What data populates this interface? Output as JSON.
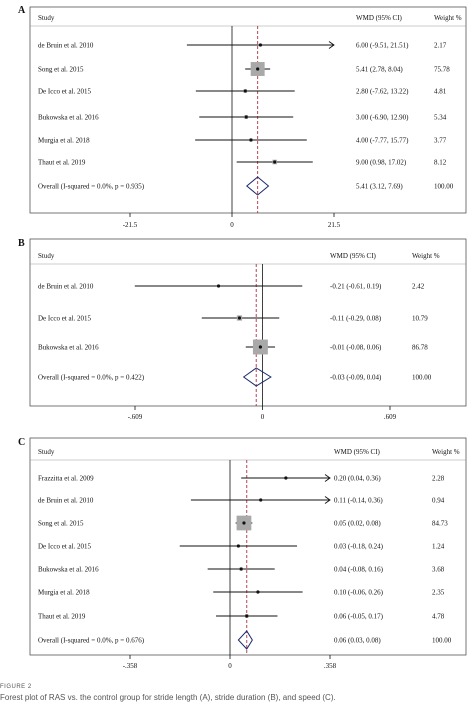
{
  "chart_data": [
    {
      "type": "forest",
      "panel_label": "A",
      "header": {
        "study": "Study",
        "effect": "WMD (95% CI)",
        "weight": "Weight %"
      },
      "rows": [
        {
          "study": "de Bruin et al. 2010",
          "estimate": 6.0,
          "lower": -9.51,
          "upper": 21.51,
          "ci_text": "6.00 (-9.51, 21.51)",
          "weight": 2.17,
          "weight_text": "2.17"
        },
        {
          "study": "Song et al. 2015",
          "estimate": 5.41,
          "lower": 2.78,
          "upper": 8.04,
          "ci_text": "5.41 (2.78, 8.04)",
          "weight": 75.78,
          "weight_text": "75.78"
        },
        {
          "study": "De Icco et al. 2015",
          "estimate": 2.8,
          "lower": -7.62,
          "upper": 13.22,
          "ci_text": "2.80 (-7.62, 13.22)",
          "weight": 4.81,
          "weight_text": "4.81"
        },
        {
          "study": "Bukowska et al. 2016",
          "estimate": 3.0,
          "lower": -6.9,
          "upper": 12.9,
          "ci_text": "3.00 (-6.90, 12.90)",
          "weight": 5.34,
          "weight_text": "5.34"
        },
        {
          "study": "Murgia et al. 2018",
          "estimate": 4.0,
          "lower": -7.77,
          "upper": 15.77,
          "ci_text": "4.00 (-7.77, 15.77)",
          "weight": 3.77,
          "weight_text": "3.77"
        },
        {
          "study": "Thaut et al. 2019",
          "estimate": 9.0,
          "lower": 0.98,
          "upper": 17.02,
          "ci_text": "9.00 (0.98, 17.02)",
          "weight": 8.12,
          "weight_text": "8.12"
        }
      ],
      "overall": {
        "study": "Overall  (I-squared = 0.0%, p = 0.935)",
        "estimate": 5.41,
        "lower": 3.12,
        "upper": 7.69,
        "ci_text": "5.41 (3.12, 7.69)",
        "weight_text": "100.00"
      },
      "xlim": [
        -21.5,
        21.5
      ],
      "ticks": [
        {
          "value": -21.5,
          "label": "-21.5"
        },
        {
          "value": 0,
          "label": "0"
        },
        {
          "value": 21.5,
          "label": "21.5"
        }
      ]
    },
    {
      "type": "forest",
      "panel_label": "B",
      "header": {
        "study": "Study",
        "effect": "WMD (95% CI)",
        "weight": "Weight  %"
      },
      "rows": [
        {
          "study": "de Bruin et al. 2010",
          "estimate": -0.21,
          "lower": -0.61,
          "upper": 0.19,
          "ci_text": "-0.21 (-0.61, 0.19)",
          "weight": 2.42,
          "weight_text": "2.42"
        },
        {
          "study": "De Icco et al. 2015",
          "estimate": -0.11,
          "lower": -0.29,
          "upper": 0.08,
          "ci_text": "-0.11 (-0.29, 0.08)",
          "weight": 10.79,
          "weight_text": "10.79"
        },
        {
          "study": "Bukowska et al. 2016",
          "estimate": -0.01,
          "lower": -0.08,
          "upper": 0.06,
          "ci_text": "-0.01 (-0.08, 0.06)",
          "weight": 86.78,
          "weight_text": "86.78"
        }
      ],
      "overall": {
        "study": "Overall  (I-squared = 0.0%, p = 0.422)",
        "estimate": -0.03,
        "lower": -0.09,
        "upper": 0.04,
        "ci_text": "-0.03 (-0.09, 0.04)",
        "weight_text": "100.00"
      },
      "xlim": [
        -0.609,
        0.609
      ],
      "ticks": [
        {
          "value": -0.609,
          "label": "-.609"
        },
        {
          "value": 0,
          "label": "0"
        },
        {
          "value": 0.609,
          "label": ".609"
        }
      ]
    },
    {
      "type": "forest",
      "panel_label": "C",
      "header": {
        "study": "Study",
        "effect": "WMD (95% CI)",
        "weight": "Weight  %"
      },
      "rows": [
        {
          "study": "Frazzitta et al. 2009",
          "estimate": 0.2,
          "lower": 0.04,
          "upper": 0.36,
          "ci_text": "0.20 (0.04, 0.36)",
          "weight": 2.28,
          "weight_text": "2.28"
        },
        {
          "study": "de Bruin et al. 2010",
          "estimate": 0.11,
          "lower": -0.14,
          "upper": 0.36,
          "ci_text": "0.11 (-0.14, 0.36)",
          "weight": 0.94,
          "weight_text": "0.94"
        },
        {
          "study": "Song et al. 2015",
          "estimate": 0.05,
          "lower": 0.02,
          "upper": 0.08,
          "ci_text": "0.05 (0.02, 0.08)",
          "weight": 84.73,
          "weight_text": "84.73"
        },
        {
          "study": "De Icco et al. 2015",
          "estimate": 0.03,
          "lower": -0.18,
          "upper": 0.24,
          "ci_text": "0.03 (-0.18, 0.24)",
          "weight": 1.24,
          "weight_text": "1.24"
        },
        {
          "study": "Bukowska et al. 2016",
          "estimate": 0.04,
          "lower": -0.08,
          "upper": 0.16,
          "ci_text": "0.04 (-0.08, 0.16)",
          "weight": 3.68,
          "weight_text": "3.68"
        },
        {
          "study": "Murgia et al. 2018",
          "estimate": 0.1,
          "lower": -0.06,
          "upper": 0.26,
          "ci_text": "0.10 (-0.06, 0.26)",
          "weight": 2.35,
          "weight_text": "2.35"
        },
        {
          "study": "Thaut et al. 2019",
          "estimate": 0.06,
          "lower": -0.05,
          "upper": 0.17,
          "ci_text": "0.06 (-0.05, 0.17)",
          "weight": 4.78,
          "weight_text": "4.78"
        }
      ],
      "overall": {
        "study": "Overall  (I-squared = 0.0%, p = 0.676)",
        "estimate": 0.06,
        "lower": 0.03,
        "upper": 0.08,
        "ci_text": "0.06 (0.03, 0.08)",
        "weight_text": "100.00"
      },
      "xlim": [
        -0.358,
        0.358
      ],
      "ticks": [
        {
          "value": -0.358,
          "label": "-.358"
        },
        {
          "value": 0,
          "label": "0"
        },
        {
          "value": 0.358,
          "label": ".358"
        }
      ]
    }
  ],
  "caption": {
    "figure_label": "FIGURE 2",
    "text": "Forest plot of RAS vs. the control group for stride length (A), stride duration (B), and speed (C)."
  },
  "colors": {
    "reference_line": "#b03040",
    "weight_box": "#a9a9a9",
    "frame": "#555555"
  }
}
